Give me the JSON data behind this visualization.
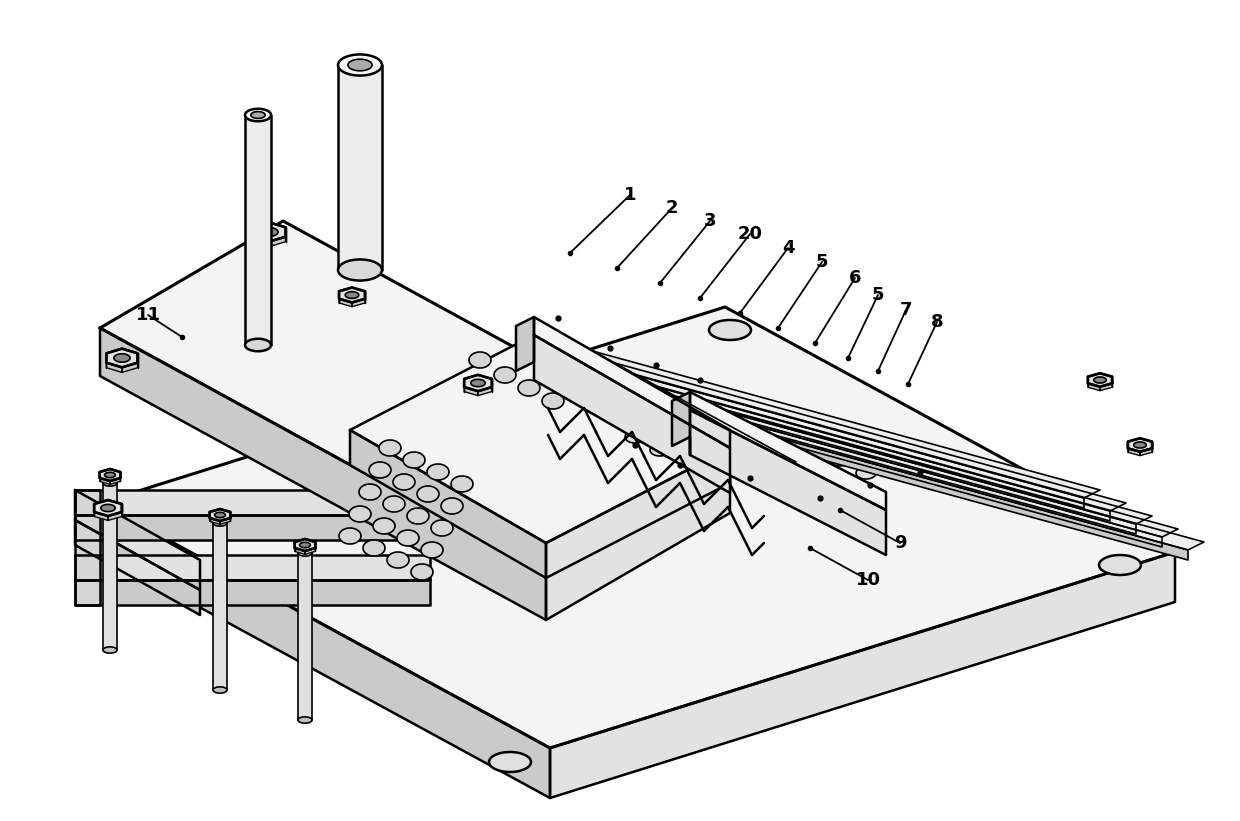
{
  "background_color": "#ffffff",
  "lc": "#000000",
  "lw": 1.8,
  "lw_thin": 1.2,
  "lw_thick": 2.2,
  "figsize": [
    12.4,
    8.21
  ],
  "dpi": 100,
  "face_light": "#f4f4f4",
  "face_mid": "#e2e2e2",
  "face_dark": "#cacaca",
  "face_side": "#d5d5d5",
  "annot_items": [
    [
      "1",
      570,
      253,
      630,
      195
    ],
    [
      "2",
      617,
      268,
      672,
      208
    ],
    [
      "3",
      660,
      283,
      710,
      221
    ],
    [
      "20",
      700,
      298,
      750,
      234
    ],
    [
      "4",
      740,
      313,
      788,
      248
    ],
    [
      "5",
      778,
      328,
      822,
      262
    ],
    [
      "6",
      815,
      343,
      855,
      278
    ],
    [
      "5",
      848,
      358,
      878,
      295
    ],
    [
      "7",
      878,
      371,
      906,
      310
    ],
    [
      "8",
      908,
      384,
      937,
      322
    ],
    [
      "9",
      840,
      510,
      900,
      543
    ],
    [
      "10",
      810,
      548,
      868,
      580
    ],
    [
      "11",
      182,
      337,
      148,
      315
    ]
  ]
}
